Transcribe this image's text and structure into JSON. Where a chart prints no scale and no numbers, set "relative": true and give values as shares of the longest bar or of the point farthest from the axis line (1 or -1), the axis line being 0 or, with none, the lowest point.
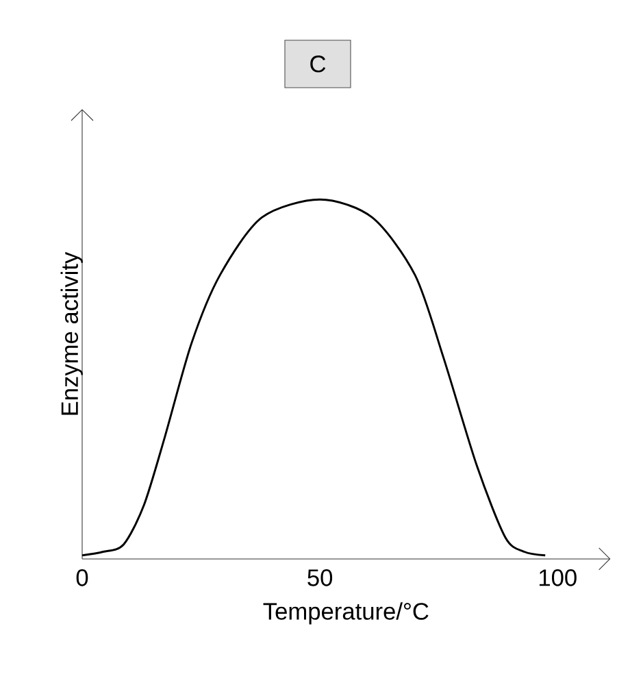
{
  "chart_data": {
    "type": "line",
    "title": "C",
    "xlabel": "Temperature/°C",
    "ylabel": "Enzyme activity",
    "relative": true,
    "xlim": [
      0,
      111
    ],
    "xticks": [
      0,
      50,
      100
    ],
    "color": "#000000",
    "x": [
      0,
      4.4,
      8.7,
      13,
      17.4,
      23,
      29,
      37.8,
      50,
      61,
      70,
      76,
      83,
      89,
      93,
      97.4
    ],
    "values": [
      0.01,
      0.02,
      0.04,
      0.15,
      0.34,
      0.6,
      0.79,
      0.95,
      1,
      0.95,
      0.79,
      0.56,
      0.26,
      0.06,
      0.02,
      0.01
    ]
  }
}
